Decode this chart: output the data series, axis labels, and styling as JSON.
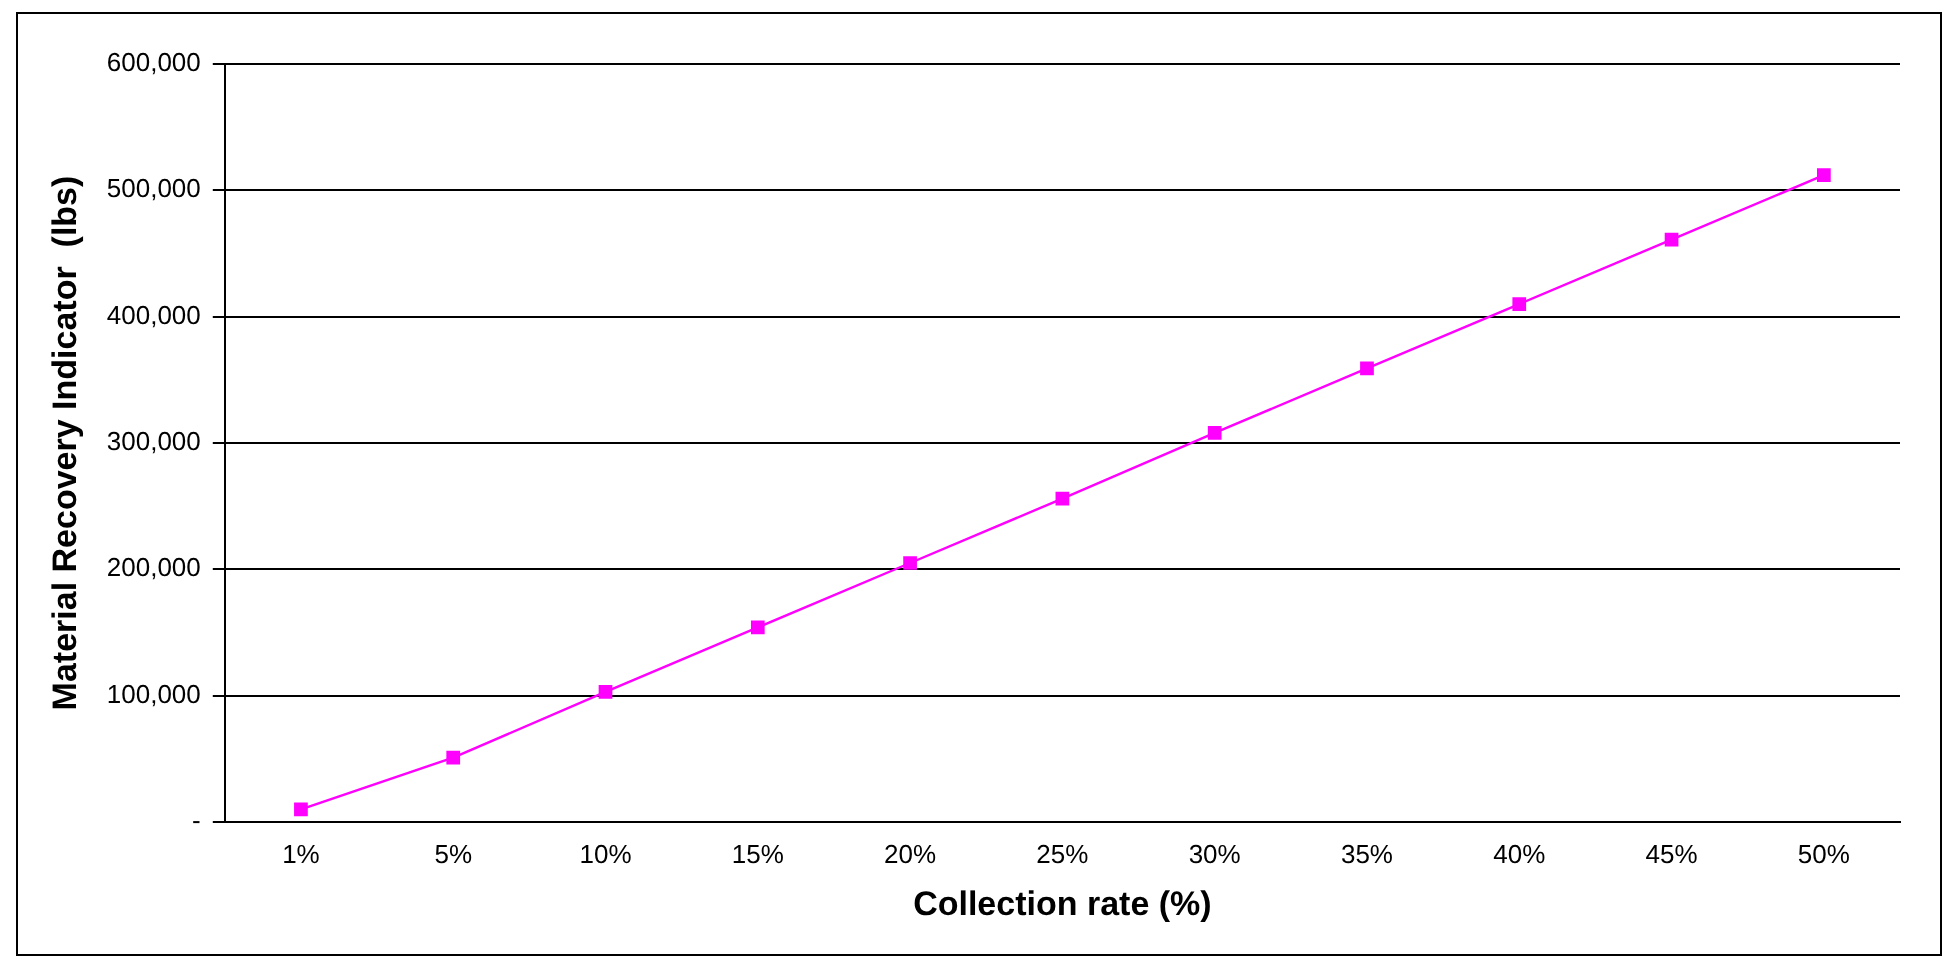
{
  "chart_data": {
    "type": "line",
    "xlabel": "Collection rate (%)",
    "ylabel": "Material Recovery Indicator  (lbs)",
    "categories": [
      "1%",
      "5%",
      "10%",
      "15%",
      "20%",
      "25%",
      "30%",
      "35%",
      "40%",
      "45%",
      "50%"
    ],
    "series": [
      {
        "color": "#ff00ff",
        "values": [
          10000,
          51000,
          103000,
          154000,
          205000,
          256000,
          308000,
          359000,
          410000,
          461000,
          512000
        ]
      }
    ],
    "ylim": [
      0,
      600000
    ],
    "yticks": [
      {
        "value": 0,
        "label": "-"
      },
      {
        "value": 100000,
        "label": "100,000"
      },
      {
        "value": 200000,
        "label": "200,000"
      },
      {
        "value": 300000,
        "label": "300,000"
      },
      {
        "value": 400000,
        "label": "400,000"
      },
      {
        "value": 500000,
        "label": "500,000"
      },
      {
        "value": 600000,
        "label": "600,000"
      }
    ],
    "grid": "y",
    "legend": false,
    "marker": "square"
  }
}
